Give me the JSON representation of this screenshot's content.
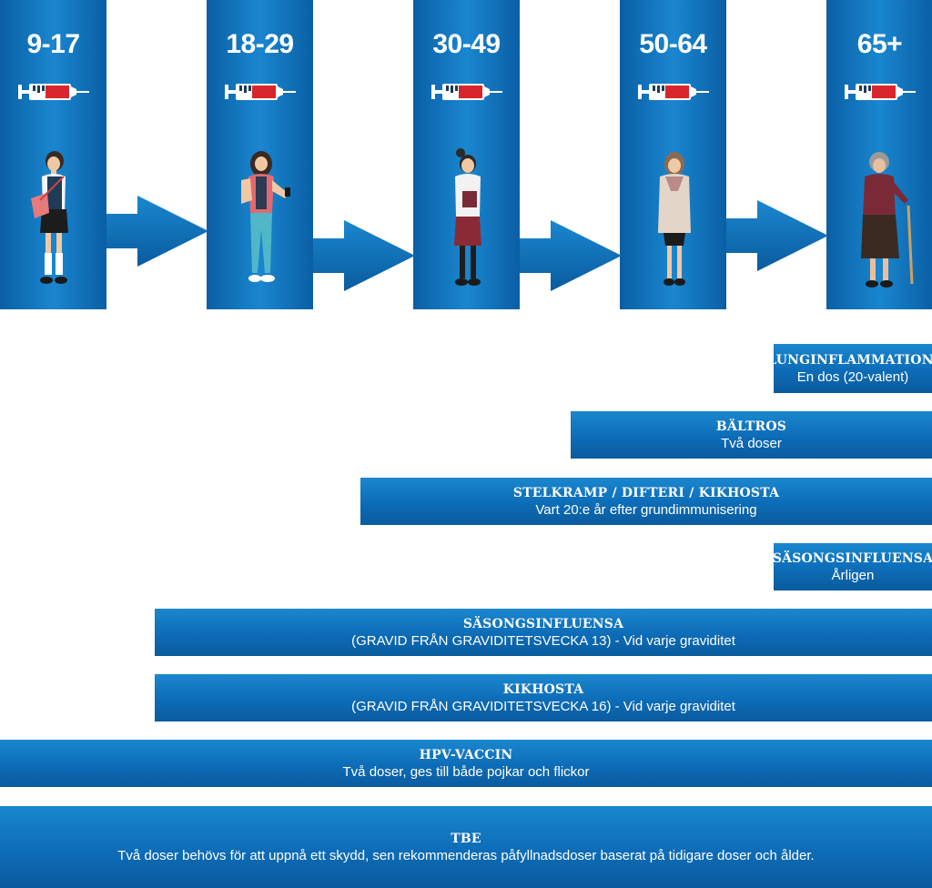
{
  "age_groups": [
    {
      "label": "9-17"
    },
    {
      "label": "18-29"
    },
    {
      "label": "30-49"
    },
    {
      "label": "50-64"
    },
    {
      "label": "65+"
    }
  ],
  "colors": {
    "column_blue": "#0d6cb7",
    "bar_blue": "#0d6cb7",
    "syringe_red": "#d9262c"
  },
  "vaccines": [
    {
      "title": "LUNGINFLAMMATION:",
      "detail": "En dos (20-valent)"
    },
    {
      "title": "BÄLTROS",
      "detail": "Två doser"
    },
    {
      "title": "STELKRAMP / DIFTERI / KIKHOSTA",
      "detail": "Vart 20:e år efter grundimmunisering"
    },
    {
      "title": "SÄSONGSINFLUENSA",
      "detail": "Årligen"
    },
    {
      "title": "SÄSONGSINFLUENSA",
      "detail": "(GRAVID FRÅN GRAVIDITETSVECKA 13) - Vid varje graviditet"
    },
    {
      "title": "KIKHOSTA",
      "detail": "(GRAVID FRÅN GRAVIDITETSVECKA 16) - Vid varje graviditet"
    },
    {
      "title": "HPV-VACCIN",
      "detail": "Två doser, ges till både pojkar och flickor"
    },
    {
      "title": "TBE",
      "detail": "Två doser behövs för att uppnå ett skydd, sen rekommenderas påfyllnadsdoser baserat på tidigare doser och ålder."
    }
  ]
}
